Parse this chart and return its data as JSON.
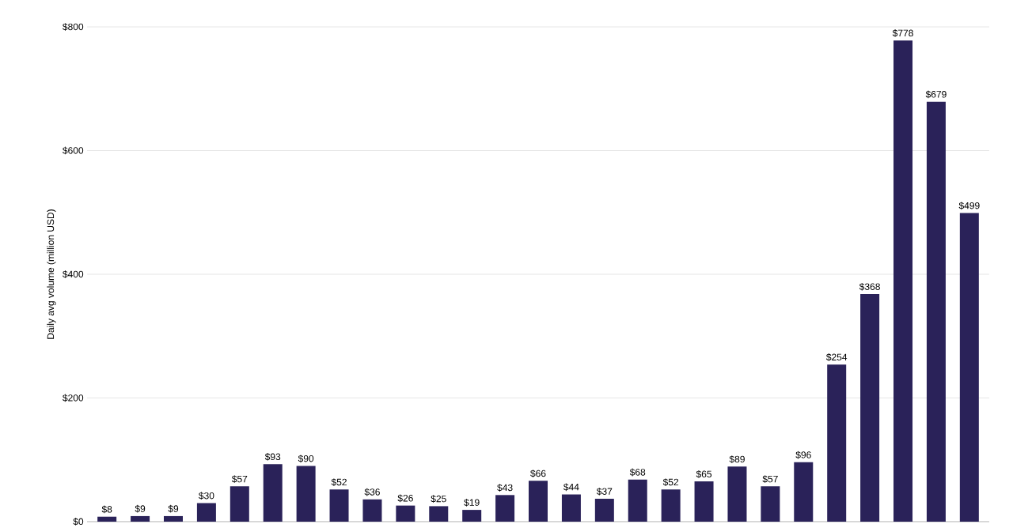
{
  "chart_data": {
    "type": "bar",
    "ylabel": "Daily avg volume (million USD)",
    "categories": [
      null,
      null,
      null,
      null,
      null,
      null,
      null,
      null,
      null,
      null,
      null,
      null,
      null,
      null,
      null,
      null,
      null,
      null,
      null,
      null,
      null,
      null,
      null,
      null,
      null,
      null,
      null
    ],
    "values": [
      8,
      9,
      9,
      30,
      57,
      93,
      90,
      52,
      36,
      26,
      25,
      19,
      43,
      66,
      44,
      37,
      68,
      52,
      65,
      89,
      57,
      96,
      254,
      368,
      778,
      679,
      499
    ],
    "value_labels": [
      "$8",
      "$9",
      "$9",
      "$30",
      "$57",
      "$93",
      "$90",
      "$52",
      "$36",
      "$26",
      "$25",
      "$19",
      "$43",
      "$66",
      "$44",
      "$37",
      "$68",
      "$52",
      "$65",
      "$89",
      "$57",
      "$96",
      "$254",
      "$368",
      "$778",
      "$679",
      "$499"
    ],
    "color": "#2a2259",
    "ylim": [
      0,
      800
    ],
    "yticks": [
      {
        "value": 0,
        "label": "$0"
      },
      {
        "value": 200,
        "label": "$200"
      },
      {
        "value": 400,
        "label": "$400"
      },
      {
        "value": 600,
        "label": "$600"
      },
      {
        "value": 800,
        "label": "$800"
      }
    ],
    "grid": "y"
  }
}
